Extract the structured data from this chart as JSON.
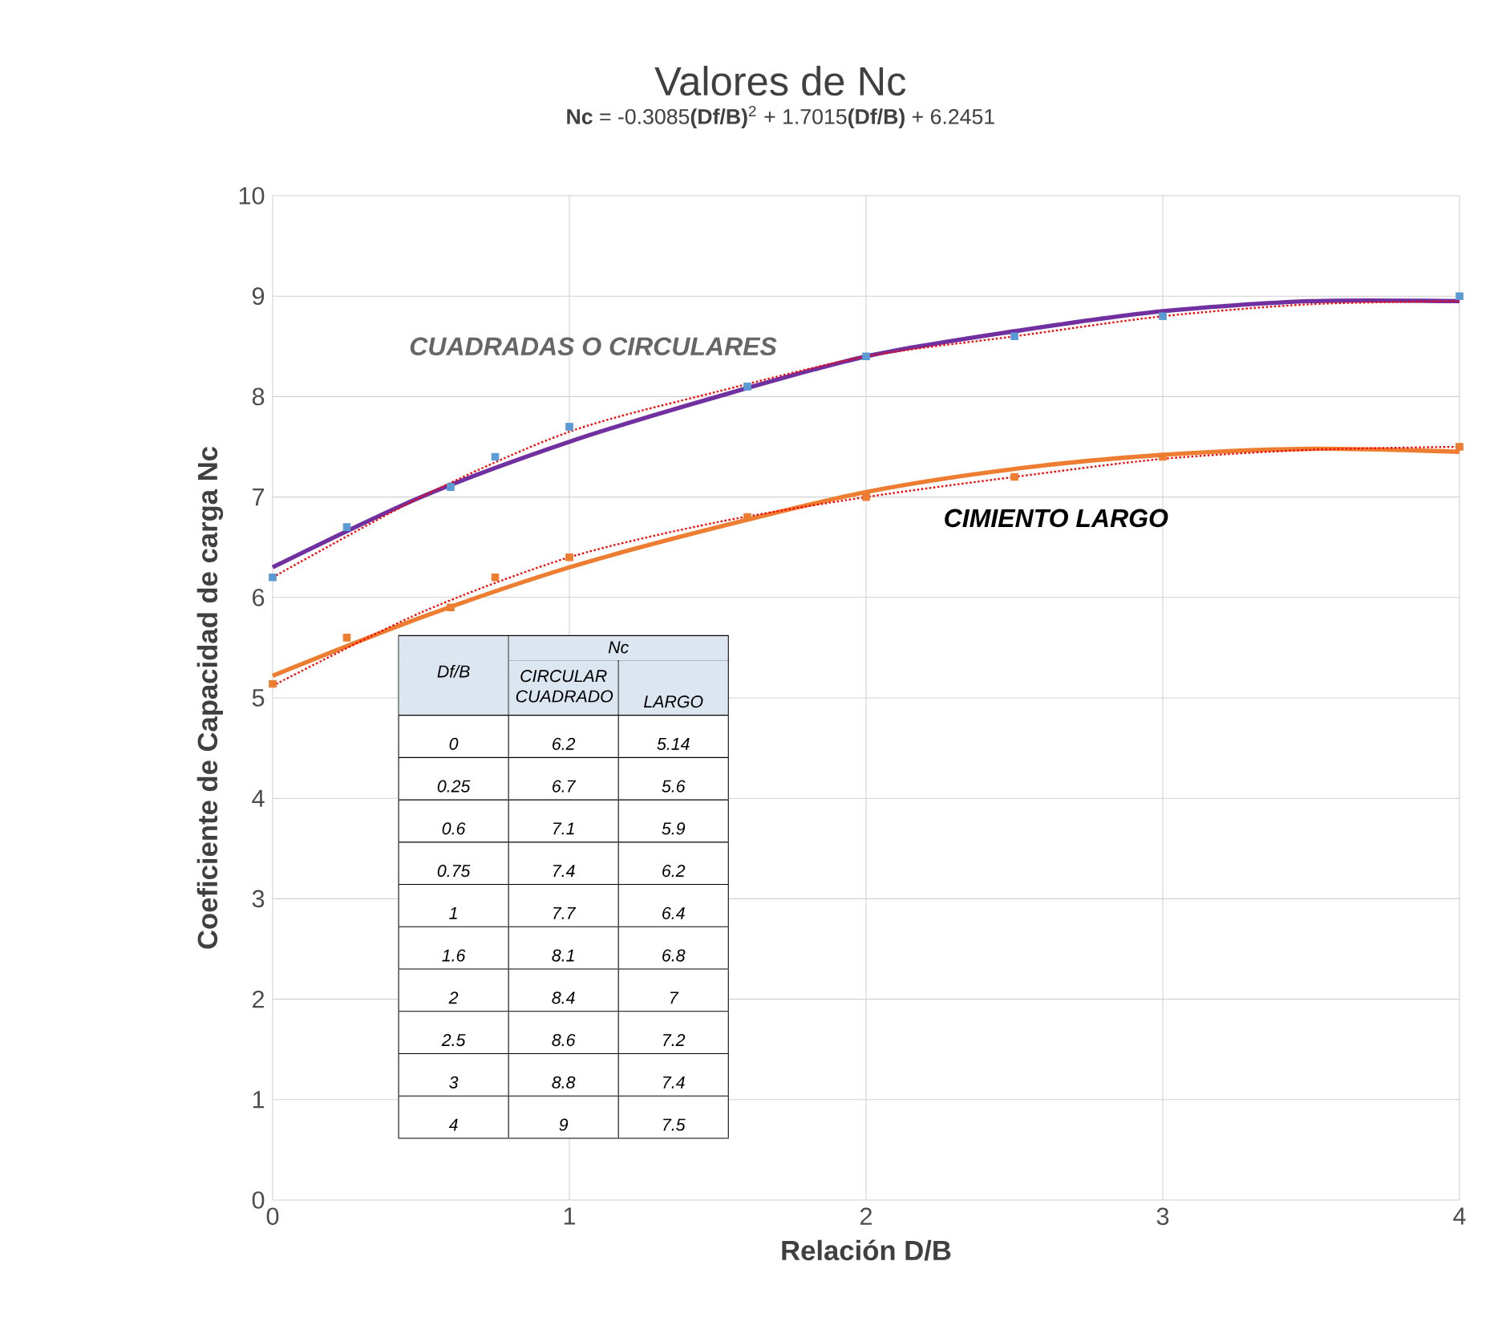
{
  "chart_data": [
    {
      "type": "scatter",
      "title": "Valores  de Nc",
      "subtitle": "**Nc** = -0.3085**(Df/B)**$^{2}$ + 1.7015**(Df/B)** + 6.2451",
      "xlabel": "Relación D/B",
      "ylabel": "Coeficiente de Capacidad de carga Nc",
      "x": [
        0,
        0.25,
        0.6,
        0.75,
        1,
        1.6,
        2,
        2.5,
        3,
        4
      ],
      "series": [
        {
          "type": "scatter",
          "color": "#5b9bd5",
          "marker": "square",
          "values": [
            6.2,
            6.7,
            7.1,
            7.4,
            7.7,
            8.1,
            8.4,
            8.6,
            8.8,
            9
          ]
        },
        {
          "type": "scatter",
          "color": "#ed7d31",
          "marker": "square",
          "values": [
            5.14,
            5.6,
            5.9,
            6.2,
            6.4,
            6.8,
            7,
            7.2,
            7.4,
            7.5
          ]
        },
        {
          "type": "line",
          "name": "CUADRADAS O CIRCULARES",
          "color": "#7030a0",
          "line_style": "solid",
          "x": [
            0,
            0.5,
            1,
            1.5,
            2,
            2.5,
            3,
            3.5,
            4
          ],
          "values": [
            6.3,
            7.0,
            7.55,
            8.0,
            8.4,
            8.65,
            8.85,
            8.95,
            8.95
          ]
        },
        {
          "type": "line",
          "name": "CIMIENTO LARGO",
          "color": "#ed7d31",
          "line_style": "solid",
          "x": [
            0,
            0.5,
            1,
            1.5,
            2,
            2.5,
            3,
            3.5,
            4
          ],
          "values": [
            5.22,
            5.8,
            6.3,
            6.7,
            7.05,
            7.28,
            7.42,
            7.48,
            7.45
          ]
        },
        {
          "type": "line",
          "color": "#ff0000",
          "line_style": "dotted",
          "x": [
            0,
            0.5,
            1,
            1.5,
            2,
            2.5,
            3,
            3.5,
            4
          ],
          "values": [
            6.2,
            7.0,
            7.65,
            8.05,
            8.4,
            8.6,
            8.8,
            8.92,
            8.95
          ]
        },
        {
          "type": "line",
          "color": "#ff0000",
          "line_style": "dotted",
          "x": [
            0,
            0.5,
            1,
            1.5,
            2,
            2.5,
            3,
            3.5,
            4
          ],
          "values": [
            5.12,
            5.85,
            6.4,
            6.75,
            7.0,
            7.2,
            7.38,
            7.47,
            7.5
          ]
        }
      ],
      "xlim": [
        0,
        4
      ],
      "ylim": [
        0,
        10
      ],
      "xticks": [
        0,
        1,
        2,
        3,
        4
      ],
      "yticks": [
        0,
        1,
        2,
        3,
        4,
        5,
        6,
        7,
        8,
        9,
        10
      ],
      "grid": true,
      "marker": "none"
    },
    {
      "type": "other",
      "annotations": [
        "Df/B",
        "Nc",
        "CIRCULAR CUADRADO",
        "LARGO",
        "0",
        "6.2",
        "5.14",
        "0.25",
        "6.7",
        "5.6",
        "0.6",
        "7.1",
        "5.9",
        "0.75",
        "7.4",
        "6.2",
        "1",
        "7.7",
        "6.4",
        "1.6",
        "8.1",
        "6.8",
        "2",
        "8.4",
        "7",
        "2.5",
        "8.6",
        "7.2",
        "3",
        "8.8",
        "7.4",
        "4",
        "9",
        "7.5"
      ]
    }
  ]
}
